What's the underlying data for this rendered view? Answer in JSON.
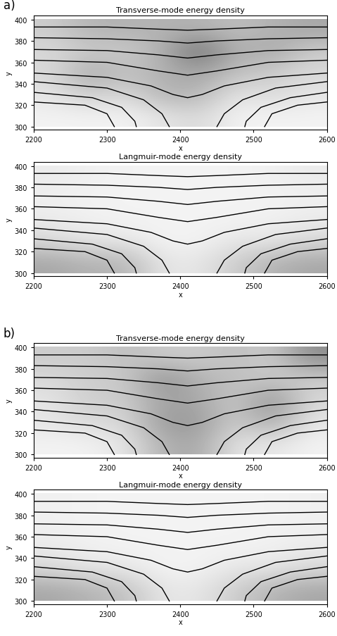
{
  "chart_data": [
    {
      "type": "heatmap",
      "panel": "a)",
      "title": "Transverse-mode energy density",
      "x_label": "x",
      "y_label": "y",
      "xlim": [
        2200,
        2600
      ],
      "ylim": [
        297,
        404
      ],
      "xticks": [
        2200,
        2300,
        2400,
        2500,
        2600
      ],
      "yticks": [
        300,
        320,
        340,
        360,
        380,
        400
      ],
      "cell_x": [
        2200,
        2250,
        2300,
        2350,
        2400,
        2450,
        2500,
        2550,
        2600
      ],
      "cell_y": [
        300,
        320,
        340,
        360,
        380,
        400
      ],
      "color_range": [
        0,
        1
      ],
      "cells": [
        [
          0.05,
          0.05,
          0.05,
          0.1,
          0.15,
          0.05,
          0.05,
          0.05
        ],
        [
          0.1,
          0.2,
          0.15,
          0.3,
          0.3,
          0.1,
          0.15,
          0.1
        ],
        [
          0.15,
          0.35,
          0.25,
          0.3,
          0.35,
          0.25,
          0.2,
          0.15
        ],
        [
          0.15,
          0.2,
          0.2,
          0.3,
          0.6,
          0.3,
          0.35,
          0.2
        ],
        [
          0.2,
          0.3,
          0.3,
          0.3,
          0.3,
          0.25,
          0.3,
          0.35
        ]
      ],
      "contour_lines": [
        {
          "x": [
            2200,
            2300,
            2370,
            2410,
            2450,
            2520,
            2600
          ],
          "y": [
            393,
            393,
            391,
            390,
            391,
            393,
            393
          ]
        },
        {
          "x": [
            2200,
            2300,
            2370,
            2410,
            2450,
            2520,
            2600
          ],
          "y": [
            383,
            382,
            380,
            378,
            380,
            382,
            383
          ]
        },
        {
          "x": [
            2200,
            2300,
            2370,
            2410,
            2450,
            2520,
            2600
          ],
          "y": [
            372,
            371,
            367,
            364,
            367,
            371,
            372
          ]
        },
        {
          "x": [
            2200,
            2300,
            2370,
            2410,
            2450,
            2520,
            2600
          ],
          "y": [
            362,
            360,
            352,
            348,
            352,
            360,
            362
          ]
        },
        {
          "x": [
            2200,
            2300,
            2360,
            2390,
            2410,
            2430,
            2460,
            2520,
            2600
          ],
          "y": [
            350,
            346,
            338,
            330,
            327,
            330,
            338,
            346,
            350
          ]
        },
        {
          "x": [
            2200,
            2300,
            2350,
            2375,
            2385
          ],
          "y": [
            342,
            336,
            325,
            312,
            300
          ]
        },
        {
          "x": [
            2200,
            2280,
            2320,
            2338,
            2340
          ],
          "y": [
            332,
            327,
            318,
            305,
            300
          ]
        },
        {
          "x": [
            2200,
            2270,
            2300,
            2310
          ],
          "y": [
            323,
            320,
            312,
            300
          ]
        },
        {
          "x": [
            2450,
            2460,
            2485,
            2530,
            2600
          ],
          "y": [
            300,
            312,
            325,
            336,
            342
          ]
        },
        {
          "x": [
            2488,
            2490,
            2510,
            2550,
            2600
          ],
          "y": [
            300,
            305,
            318,
            327,
            332
          ]
        },
        {
          "x": [
            2515,
            2525,
            2560,
            2600
          ],
          "y": [
            300,
            312,
            320,
            323
          ]
        }
      ]
    },
    {
      "type": "heatmap",
      "panel": "a)",
      "title": "Langmuir-mode energy density",
      "x_label": "x",
      "y_label": "y",
      "xlim": [
        2200,
        2600
      ],
      "ylim": [
        297,
        404
      ],
      "xticks": [
        2200,
        2300,
        2400,
        2500,
        2600
      ],
      "yticks": [
        300,
        320,
        340,
        360,
        380,
        400
      ],
      "cell_x": [
        2200,
        2250,
        2300,
        2350,
        2400,
        2450,
        2500,
        2550,
        2600
      ],
      "cell_y": [
        300,
        320,
        340,
        360,
        380,
        400
      ],
      "color_range": [
        0,
        1
      ],
      "cells": [
        [
          0.35,
          0.3,
          0.3,
          0.1,
          0.1,
          0.2,
          0.3,
          0.35
        ],
        [
          0.15,
          0.1,
          0.1,
          0.05,
          0.05,
          0.1,
          0.1,
          0.15
        ],
        [
          0.08,
          0.06,
          0.05,
          0.05,
          0.05,
          0.05,
          0.06,
          0.08
        ],
        [
          0.06,
          0.05,
          0.05,
          0.05,
          0.05,
          0.05,
          0.05,
          0.06
        ],
        [
          0.08,
          0.06,
          0.05,
          0.05,
          0.05,
          0.05,
          0.06,
          0.08
        ]
      ],
      "contour_lines": [
        {
          "x": [
            2200,
            2300,
            2370,
            2410,
            2450,
            2520,
            2600
          ],
          "y": [
            393,
            393,
            391,
            390,
            391,
            393,
            393
          ]
        },
        {
          "x": [
            2200,
            2300,
            2370,
            2410,
            2450,
            2520,
            2600
          ],
          "y": [
            383,
            382,
            380,
            378,
            380,
            382,
            383
          ]
        },
        {
          "x": [
            2200,
            2300,
            2370,
            2410,
            2450,
            2520,
            2600
          ],
          "y": [
            372,
            371,
            367,
            364,
            367,
            371,
            372
          ]
        },
        {
          "x": [
            2200,
            2300,
            2370,
            2410,
            2450,
            2520,
            2600
          ],
          "y": [
            362,
            360,
            352,
            348,
            352,
            360,
            362
          ]
        },
        {
          "x": [
            2200,
            2300,
            2360,
            2390,
            2410,
            2430,
            2460,
            2520,
            2600
          ],
          "y": [
            350,
            346,
            338,
            330,
            327,
            330,
            338,
            346,
            350
          ]
        },
        {
          "x": [
            2200,
            2300,
            2350,
            2375,
            2385
          ],
          "y": [
            342,
            336,
            325,
            312,
            300
          ]
        },
        {
          "x": [
            2200,
            2280,
            2320,
            2338,
            2340
          ],
          "y": [
            332,
            327,
            318,
            305,
            300
          ]
        },
        {
          "x": [
            2200,
            2270,
            2300,
            2310
          ],
          "y": [
            323,
            320,
            312,
            300
          ]
        },
        {
          "x": [
            2450,
            2460,
            2485,
            2530,
            2600
          ],
          "y": [
            300,
            312,
            325,
            336,
            342
          ]
        },
        {
          "x": [
            2488,
            2490,
            2510,
            2550,
            2600
          ],
          "y": [
            300,
            305,
            318,
            327,
            332
          ]
        },
        {
          "x": [
            2515,
            2525,
            2560,
            2600
          ],
          "y": [
            300,
            312,
            320,
            323
          ]
        }
      ]
    },
    {
      "type": "heatmap",
      "panel": "b)",
      "title": "Transverse-mode energy density",
      "x_label": "x",
      "y_label": "y",
      "xlim": [
        2200,
        2600
      ],
      "ylim": [
        297,
        404
      ],
      "xticks": [
        2200,
        2300,
        2400,
        2500,
        2600
      ],
      "yticks": [
        300,
        320,
        340,
        360,
        380,
        400
      ],
      "cell_x": [
        2200,
        2250,
        2300,
        2350,
        2400,
        2450,
        2500,
        2550,
        2600
      ],
      "cell_y": [
        300,
        320,
        340,
        360,
        380,
        400
      ],
      "color_range": [
        0,
        1
      ],
      "cells": [
        [
          0.05,
          0.05,
          0.1,
          0.3,
          0.35,
          0.1,
          0.1,
          0.05
        ],
        [
          0.1,
          0.15,
          0.15,
          0.4,
          0.4,
          0.2,
          0.35,
          0.1
        ],
        [
          0.1,
          0.2,
          0.2,
          0.35,
          0.35,
          0.2,
          0.45,
          0.15
        ],
        [
          0.15,
          0.2,
          0.2,
          0.45,
          0.3,
          0.25,
          0.2,
          0.2
        ],
        [
          0.2,
          0.2,
          0.25,
          0.2,
          0.2,
          0.25,
          0.2,
          0.45
        ]
      ],
      "contour_lines": [
        {
          "x": [
            2200,
            2300,
            2370,
            2410,
            2450,
            2520,
            2600
          ],
          "y": [
            393,
            393,
            391,
            390,
            391,
            393,
            393
          ]
        },
        {
          "x": [
            2200,
            2300,
            2370,
            2410,
            2450,
            2520,
            2600
          ],
          "y": [
            383,
            382,
            380,
            378,
            380,
            382,
            383
          ]
        },
        {
          "x": [
            2200,
            2300,
            2370,
            2410,
            2450,
            2520,
            2600
          ],
          "y": [
            372,
            371,
            367,
            364,
            367,
            371,
            372
          ]
        },
        {
          "x": [
            2200,
            2300,
            2370,
            2410,
            2450,
            2520,
            2600
          ],
          "y": [
            362,
            360,
            352,
            348,
            352,
            360,
            362
          ]
        },
        {
          "x": [
            2200,
            2300,
            2360,
            2390,
            2410,
            2430,
            2460,
            2520,
            2600
          ],
          "y": [
            350,
            346,
            338,
            330,
            327,
            330,
            338,
            346,
            350
          ]
        },
        {
          "x": [
            2200,
            2300,
            2350,
            2375,
            2385
          ],
          "y": [
            342,
            336,
            325,
            312,
            300
          ]
        },
        {
          "x": [
            2200,
            2280,
            2320,
            2338,
            2340
          ],
          "y": [
            332,
            327,
            318,
            305,
            300
          ]
        },
        {
          "x": [
            2200,
            2270,
            2300,
            2310
          ],
          "y": [
            323,
            320,
            312,
            300
          ]
        },
        {
          "x": [
            2450,
            2460,
            2485,
            2530,
            2600
          ],
          "y": [
            300,
            312,
            325,
            336,
            342
          ]
        },
        {
          "x": [
            2488,
            2490,
            2510,
            2550,
            2600
          ],
          "y": [
            300,
            305,
            318,
            327,
            332
          ]
        },
        {
          "x": [
            2515,
            2525,
            2560,
            2600
          ],
          "y": [
            300,
            312,
            320,
            323
          ]
        }
      ]
    },
    {
      "type": "heatmap",
      "panel": "b)",
      "title": "Langmuir-mode energy density",
      "x_label": "x",
      "y_label": "y",
      "xlim": [
        2200,
        2600
      ],
      "ylim": [
        297,
        404
      ],
      "xticks": [
        2200,
        2300,
        2400,
        2500,
        2600
      ],
      "yticks": [
        300,
        320,
        340,
        360,
        380,
        400
      ],
      "cell_x": [
        2200,
        2250,
        2300,
        2350,
        2400,
        2450,
        2500,
        2550,
        2600
      ],
      "cell_y": [
        300,
        320,
        340,
        360,
        380,
        400
      ],
      "color_range": [
        0,
        1
      ],
      "cells": [
        [
          0.35,
          0.3,
          0.25,
          0.1,
          0.1,
          0.2,
          0.3,
          0.35
        ],
        [
          0.15,
          0.1,
          0.1,
          0.05,
          0.05,
          0.1,
          0.1,
          0.15
        ],
        [
          0.08,
          0.06,
          0.05,
          0.05,
          0.05,
          0.05,
          0.06,
          0.08
        ],
        [
          0.06,
          0.05,
          0.05,
          0.05,
          0.05,
          0.05,
          0.05,
          0.06
        ],
        [
          0.06,
          0.05,
          0.05,
          0.05,
          0.05,
          0.05,
          0.05,
          0.06
        ]
      ],
      "contour_lines": [
        {
          "x": [
            2200,
            2300,
            2370,
            2410,
            2450,
            2520,
            2600
          ],
          "y": [
            393,
            393,
            391,
            390,
            391,
            393,
            393
          ]
        },
        {
          "x": [
            2200,
            2300,
            2370,
            2410,
            2450,
            2520,
            2600
          ],
          "y": [
            383,
            382,
            380,
            378,
            380,
            382,
            383
          ]
        },
        {
          "x": [
            2200,
            2300,
            2370,
            2410,
            2450,
            2520,
            2600
          ],
          "y": [
            372,
            371,
            367,
            364,
            367,
            371,
            372
          ]
        },
        {
          "x": [
            2200,
            2300,
            2370,
            2410,
            2450,
            2520,
            2600
          ],
          "y": [
            362,
            360,
            352,
            348,
            352,
            360,
            362
          ]
        },
        {
          "x": [
            2200,
            2300,
            2360,
            2390,
            2410,
            2430,
            2460,
            2520,
            2600
          ],
          "y": [
            350,
            346,
            338,
            330,
            327,
            330,
            338,
            346,
            350
          ]
        },
        {
          "x": [
            2200,
            2300,
            2350,
            2375,
            2385
          ],
          "y": [
            342,
            336,
            325,
            312,
            300
          ]
        },
        {
          "x": [
            2200,
            2280,
            2320,
            2338,
            2340
          ],
          "y": [
            332,
            327,
            318,
            305,
            300
          ]
        },
        {
          "x": [
            2200,
            2270,
            2300,
            2310
          ],
          "y": [
            323,
            320,
            312,
            300
          ]
        },
        {
          "x": [
            2450,
            2460,
            2485,
            2530,
            2600
          ],
          "y": [
            300,
            312,
            325,
            336,
            342
          ]
        },
        {
          "x": [
            2488,
            2490,
            2510,
            2550,
            2600
          ],
          "y": [
            300,
            305,
            318,
            327,
            332
          ]
        },
        {
          "x": [
            2515,
            2525,
            2560,
            2600
          ],
          "y": [
            300,
            312,
            320,
            323
          ]
        }
      ]
    }
  ]
}
